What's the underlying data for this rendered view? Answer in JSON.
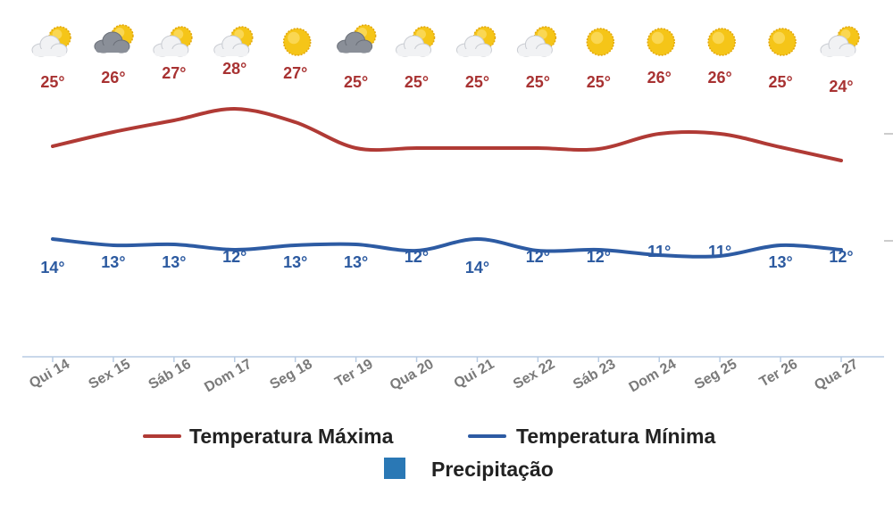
{
  "chart_data": {
    "type": "line",
    "categories": [
      "Qui 14",
      "Sex 15",
      "Sáb 16",
      "Dom 17",
      "Seg 18",
      "Ter 19",
      "Qua 20",
      "Qui 21",
      "Sex 22",
      "Sáb 23",
      "Dom 24",
      "Seg 25",
      "Ter 26",
      "Qua 27"
    ],
    "icons": [
      "partly-cloudy-icon",
      "cloudy-storm-icon",
      "partly-cloudy-icon",
      "partly-cloudy-icon",
      "sunny-icon",
      "cloudy-storm-icon",
      "partly-cloudy-icon",
      "partly-cloudy-icon",
      "partly-cloudy-icon",
      "sunny-icon",
      "sunny-icon",
      "sunny-icon",
      "sunny-icon",
      "partly-cloudy-icon"
    ],
    "series": [
      {
        "name": "Temperatura Máxima",
        "color": "#b03a35",
        "values": [
          25,
          26,
          27,
          28,
          27,
          25,
          25,
          25,
          25,
          25,
          26,
          26,
          25,
          24
        ]
      },
      {
        "name": "Temperatura Mínima",
        "color": "#2d5ba3",
        "values": [
          14,
          13,
          13,
          12,
          13,
          13,
          12,
          14,
          12,
          12,
          11,
          11,
          13,
          12
        ]
      }
    ],
    "value_suffix": "°",
    "legend_extra": {
      "name": "Precipitação",
      "color": "#2a78b5"
    },
    "legend_position": "bottom",
    "grid": false
  }
}
